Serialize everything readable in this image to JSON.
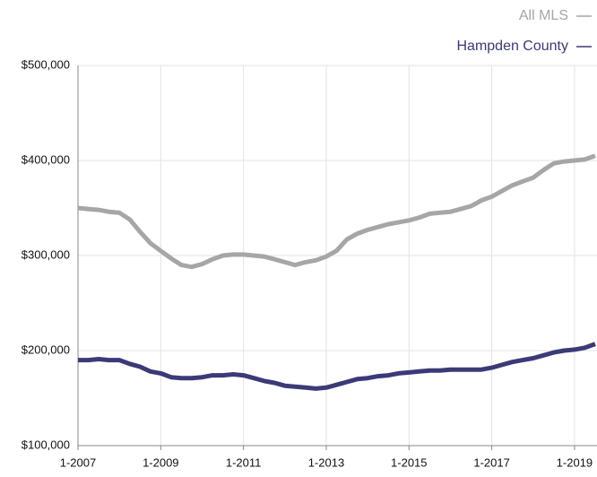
{
  "chart_data": {
    "type": "line",
    "x": [
      2007,
      2007.25,
      2007.5,
      2007.75,
      2008,
      2008.25,
      2008.5,
      2008.75,
      2009,
      2009.25,
      2009.5,
      2009.75,
      2010,
      2010.25,
      2010.5,
      2010.75,
      2011,
      2011.25,
      2011.5,
      2011.75,
      2012,
      2012.25,
      2012.5,
      2012.75,
      2013,
      2013.25,
      2013.5,
      2013.75,
      2014,
      2014.25,
      2014.5,
      2014.75,
      2015,
      2015.25,
      2015.5,
      2015.75,
      2016,
      2016.25,
      2016.5,
      2016.75,
      2017,
      2017.25,
      2017.5,
      2017.75,
      2018,
      2018.25,
      2018.5,
      2018.75,
      2019,
      2019.25,
      2019.5
    ],
    "series": [
      {
        "name": "All MLS",
        "color": "#a6a6a6",
        "values": [
          350000,
          349000,
          348000,
          346000,
          345000,
          338000,
          325000,
          313000,
          305000,
          297000,
          290000,
          288000,
          291000,
          296000,
          300000,
          301000,
          301000,
          300000,
          299000,
          296000,
          293000,
          290000,
          293000,
          295000,
          299000,
          305000,
          317000,
          323000,
          327000,
          330000,
          333000,
          335000,
          337000,
          340000,
          344000,
          345000,
          346000,
          349000,
          352000,
          358000,
          362000,
          368000,
          374000,
          378000,
          382000,
          390000,
          397000,
          399000,
          400000,
          401000,
          405000
        ]
      },
      {
        "name": "Hampden County",
        "color": "#3b3a78",
        "values": [
          190000,
          190000,
          191000,
          190000,
          190000,
          186000,
          183000,
          178000,
          176000,
          172000,
          171000,
          171000,
          172000,
          174000,
          174000,
          175000,
          174000,
          171000,
          168000,
          166000,
          163000,
          162000,
          161000,
          160000,
          161000,
          164000,
          167000,
          170000,
          171000,
          173000,
          174000,
          176000,
          177000,
          178000,
          179000,
          179000,
          180000,
          180000,
          180000,
          180000,
          182000,
          185000,
          188000,
          190000,
          192000,
          195000,
          198000,
          200000,
          201000,
          203000,
          207000
        ]
      }
    ],
    "xlim": [
      2007,
      2019.5
    ],
    "xticks": [
      {
        "value": 2007,
        "label": "1-2007"
      },
      {
        "value": 2009,
        "label": "1-2009"
      },
      {
        "value": 2011,
        "label": "1-2011"
      },
      {
        "value": 2013,
        "label": "1-2013"
      },
      {
        "value": 2015,
        "label": "1-2015"
      },
      {
        "value": 2017,
        "label": "1-2017"
      },
      {
        "value": 2019,
        "label": "1-2019"
      }
    ],
    "ylim": [
      100000,
      500000
    ],
    "yticks": [
      {
        "value": 100000,
        "label": "$100,000"
      },
      {
        "value": 200000,
        "label": "$200,000"
      },
      {
        "value": 300000,
        "label": "$300,000"
      },
      {
        "value": 400000,
        "label": "$400,000"
      },
      {
        "value": 500000,
        "label": "$500,000"
      }
    ],
    "grid": true
  }
}
